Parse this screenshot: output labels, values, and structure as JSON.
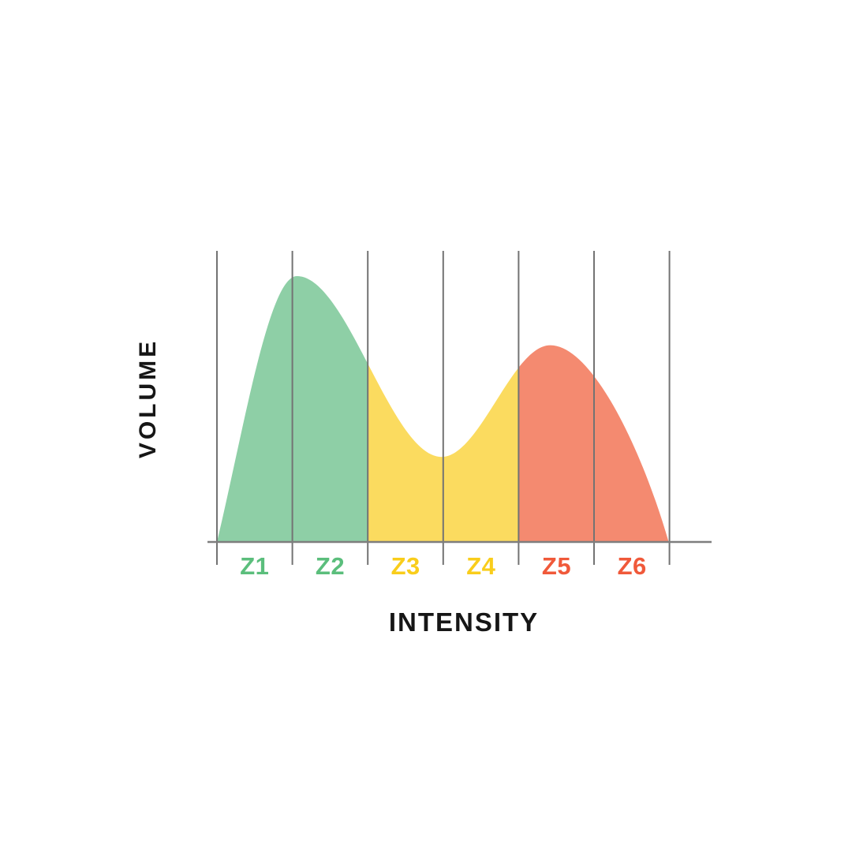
{
  "page": {
    "background_color": "#ffffff",
    "text_color": "#161616"
  },
  "chart_data": {
    "type": "area",
    "title": "",
    "xlabel": "INTENSITY",
    "ylabel": "VOLUME",
    "legend": "none",
    "grid": "vertical lines at zone boundaries",
    "axis_color": "#7e7e7e",
    "gridline_color": "#737373",
    "zones": [
      {
        "label": "Z1",
        "fill": "#8ECFA6",
        "label_color": "#5BBE7C"
      },
      {
        "label": "Z2",
        "fill": "#8ECFA6",
        "label_color": "#5BBE7C"
      },
      {
        "label": "Z3",
        "fill": "#FBDB5F",
        "label_color": "#F9CD1B"
      },
      {
        "label": "Z4",
        "fill": "#FBDB5F",
        "label_color": "#F9CD1B"
      },
      {
        "label": "Z5",
        "fill": "#F48A70",
        "label_color": "#F0593A"
      },
      {
        "label": "Z6",
        "fill": "#F48A70",
        "label_color": "#F0593A"
      }
    ],
    "bands": [
      {
        "zones": "Z1-Z2",
        "from": 0,
        "to": 2,
        "fill": "#8ECFA6"
      },
      {
        "zones": "Z3-Z4",
        "from": 2,
        "to": 4,
        "fill": "#FBDB5F"
      },
      {
        "zones": "Z5-Z6",
        "from": 4,
        "to": 6,
        "fill": "#F48A70"
      }
    ],
    "curve": {
      "shape": "bimodal volume distribution across six intensity zones",
      "x_units": "zone index (0 = start of Z1, 6 = end of Z6)",
      "y_units": "relative volume (0 = baseline, 1 = highest peak)",
      "anchors": [
        {
          "x": 0.0,
          "y": 0.0,
          "note": "start at baseline, left edge of Z1"
        },
        {
          "x": 1.06,
          "y": 1.0,
          "note": "main peak near Z1/Z2 boundary"
        },
        {
          "x": 2.98,
          "y": 0.32,
          "note": "valley near Z3/Z4 boundary"
        },
        {
          "x": 4.42,
          "y": 0.74,
          "note": "second peak inside Z5"
        },
        {
          "x": 5.99,
          "y": 0.0,
          "note": "returns to baseline at end of Z6"
        }
      ],
      "boundary_readings": [
        {
          "boundary": "Z2/Z3",
          "y": 0.7
        },
        {
          "boundary": "Z4/Z5",
          "y": 0.66
        }
      ]
    }
  }
}
